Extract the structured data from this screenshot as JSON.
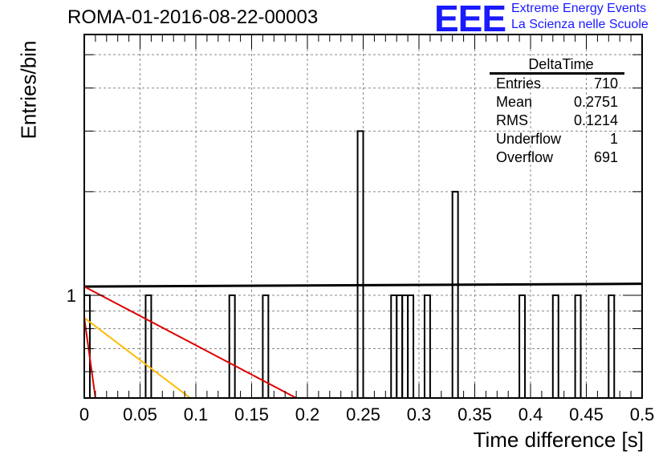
{
  "header": {
    "run_title": "ROMA-01-2016-08-22-00003",
    "logo_text": "EEE",
    "org_line1": "Extreme Energy Events",
    "org_line2": "La Scienza nelle Scuole"
  },
  "stats_box": {
    "title": "DeltaTime",
    "rows": [
      {
        "label": "Entries",
        "value": "710"
      },
      {
        "label": "Mean",
        "value": "0.2751"
      },
      {
        "label": "RMS",
        "value": "0.1214"
      },
      {
        "label": "Underflow",
        "value": "1"
      },
      {
        "label": "Overflow",
        "value": "691"
      }
    ]
  },
  "colors": {
    "histogram": "#000000",
    "fit_black": "#000000",
    "fit_red": "#dd0000",
    "fit_orange": "#ffbb00",
    "logo_blue": "#1a1aff"
  },
  "chart_data": {
    "type": "bar",
    "title": "ROMA-01-2016-08-22-00003",
    "xlabel": "Time difference [s]",
    "ylabel": "Entries/bin",
    "xlim": [
      0,
      0.5
    ],
    "log_y": true,
    "grid": true,
    "x_ticks": [
      "0",
      "0.05",
      "0.1",
      "0.15",
      "0.2",
      "0.25",
      "0.3",
      "0.35",
      "0.4",
      "0.45",
      "0.5"
    ],
    "y_ticks": [
      "1"
    ],
    "bin_width": 0.005,
    "bins": [
      {
        "x": 0.0,
        "count": 1
      },
      {
        "x": 0.055,
        "count": 1
      },
      {
        "x": 0.13,
        "count": 1
      },
      {
        "x": 0.16,
        "count": 1
      },
      {
        "x": 0.245,
        "count": 3
      },
      {
        "x": 0.275,
        "count": 1
      },
      {
        "x": 0.28,
        "count": 1
      },
      {
        "x": 0.285,
        "count": 1
      },
      {
        "x": 0.29,
        "count": 1
      },
      {
        "x": 0.305,
        "count": 1
      },
      {
        "x": 0.33,
        "count": 2
      },
      {
        "x": 0.39,
        "count": 1
      },
      {
        "x": 0.42,
        "count": 1
      },
      {
        "x": 0.44,
        "count": 1
      },
      {
        "x": 0.47,
        "count": 1
      }
    ],
    "fit_lines": [
      {
        "color": "black",
        "points": [
          [
            0.0,
            1.06
          ],
          [
            0.5,
            1.08
          ]
        ]
      },
      {
        "color": "red",
        "points": [
          [
            0.0,
            1.06
          ],
          [
            0.19,
            0.5
          ]
        ]
      },
      {
        "color": "orange",
        "points": [
          [
            0.0,
            0.86
          ],
          [
            0.095,
            0.5
          ]
        ]
      },
      {
        "color": "red",
        "points": [
          [
            0.0,
            0.86
          ],
          [
            0.01,
            0.5
          ]
        ]
      }
    ]
  }
}
